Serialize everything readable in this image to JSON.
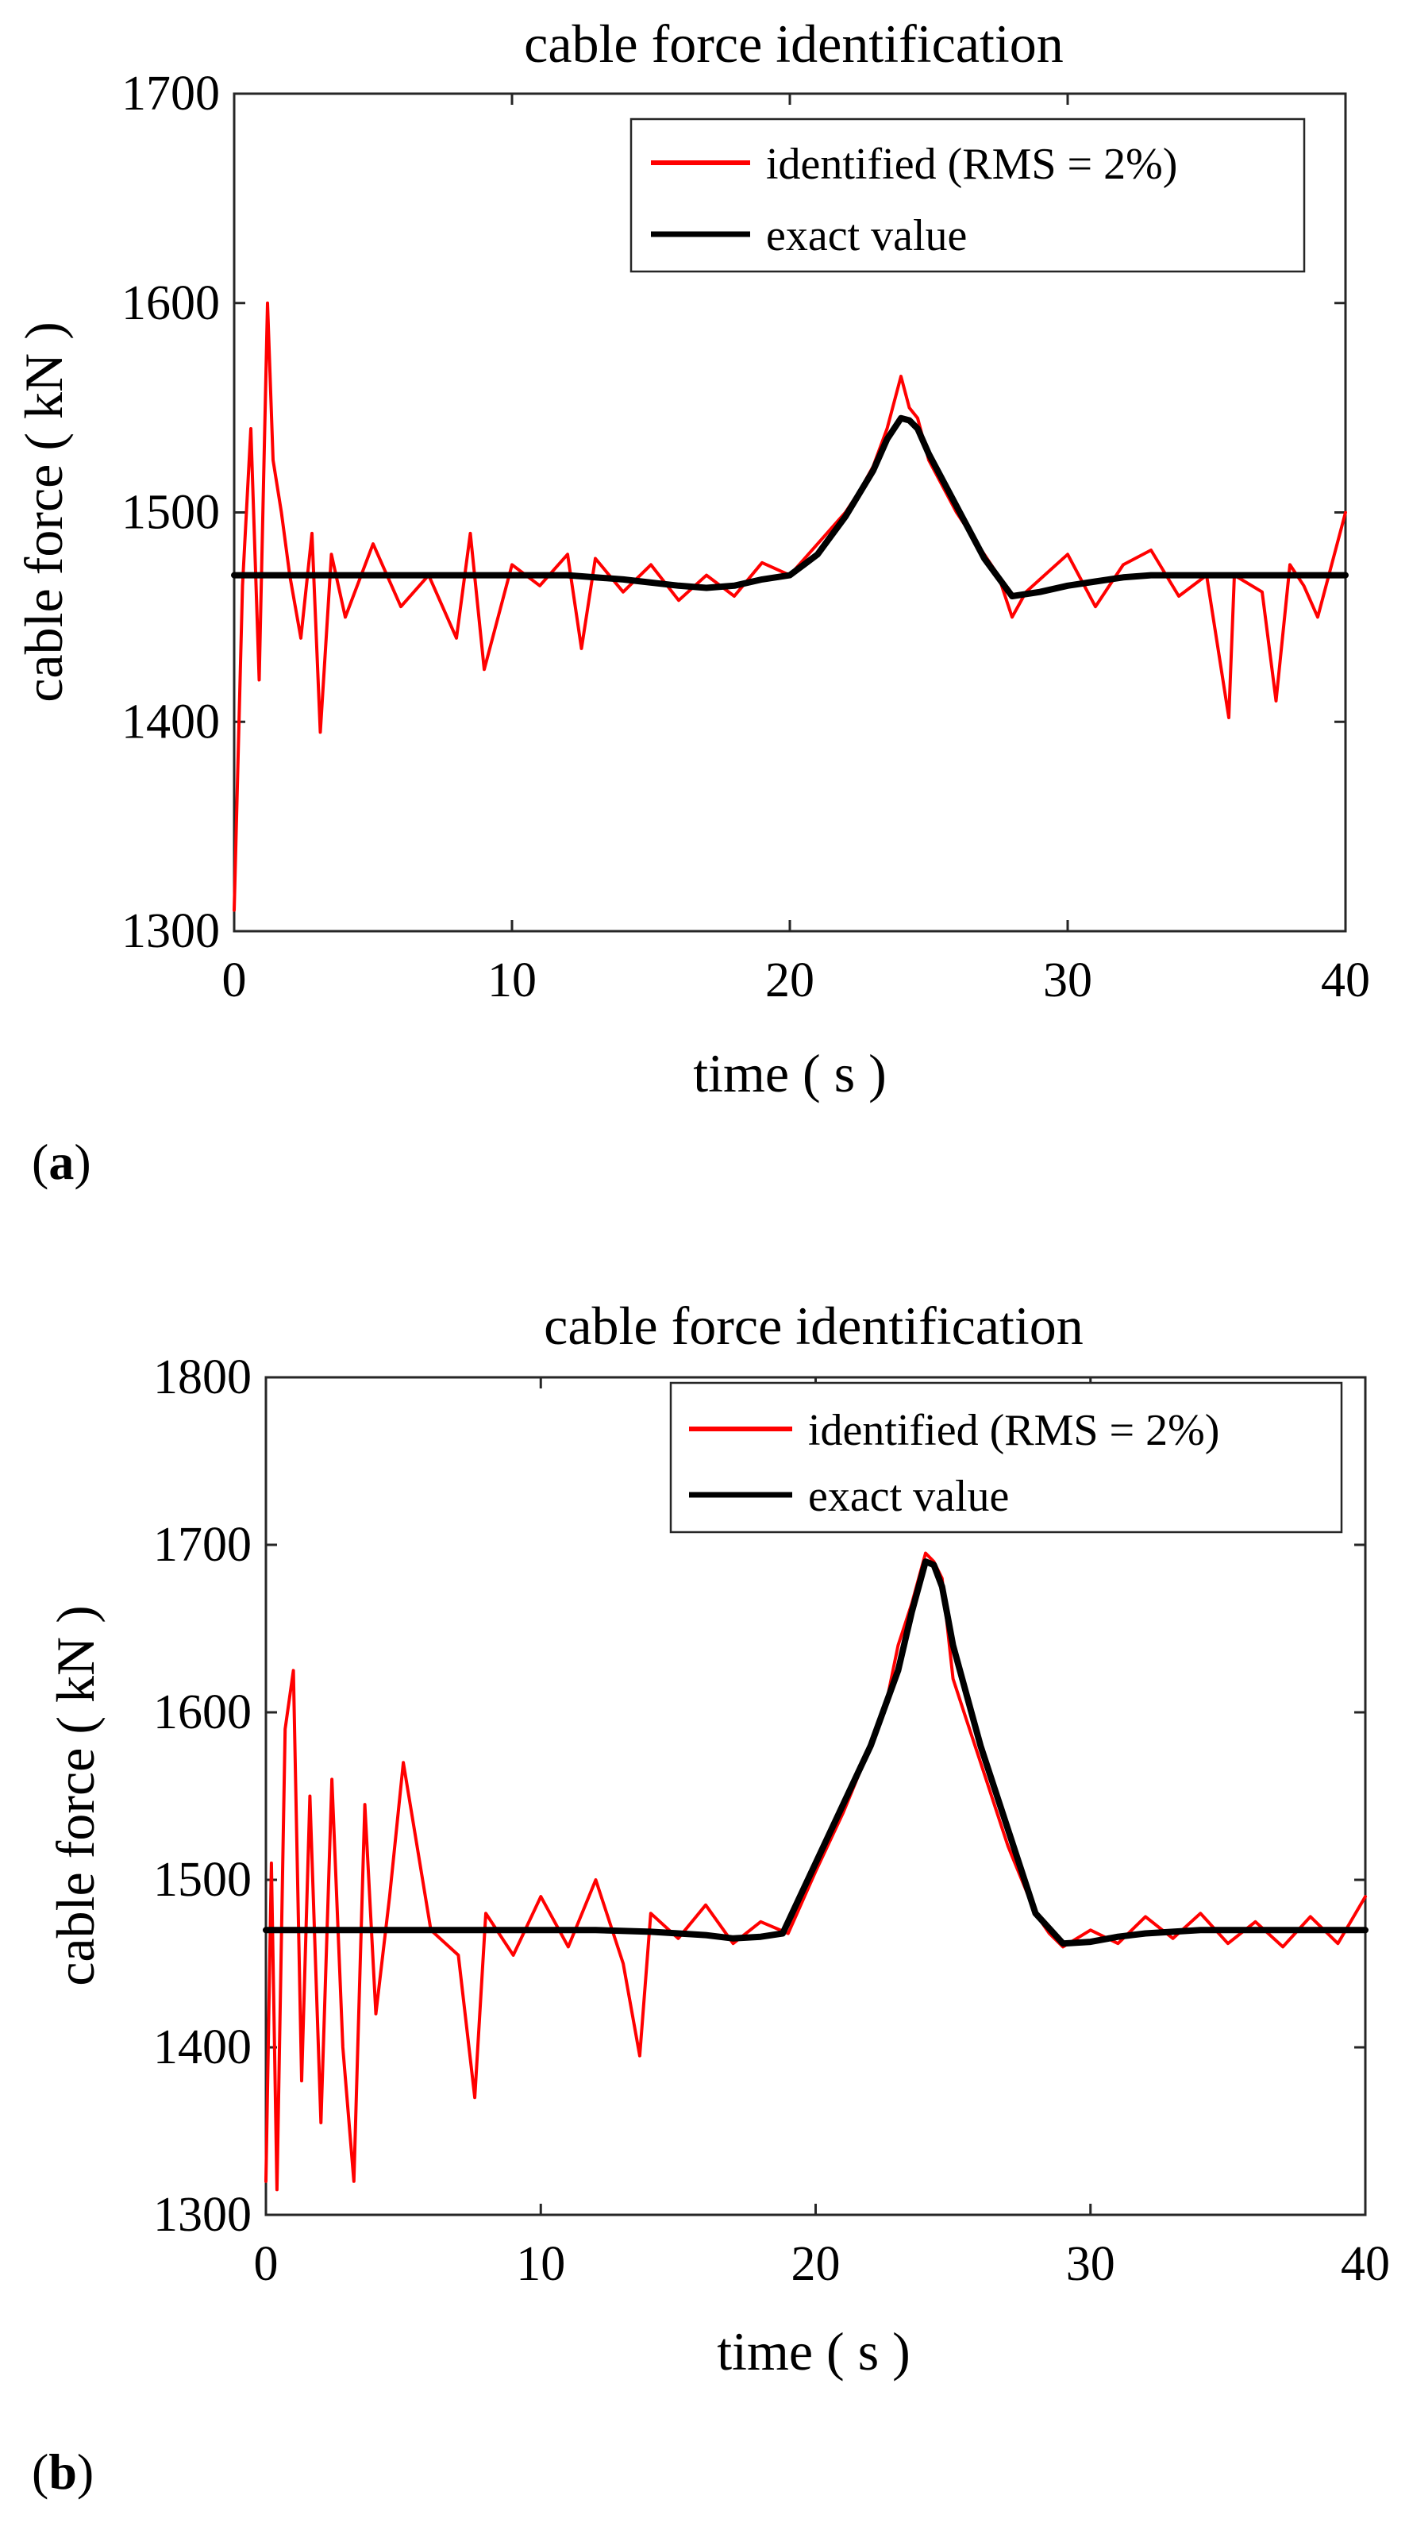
{
  "chart_data": [
    {
      "type": "line",
      "panel_label": "a",
      "title": "cable force identification",
      "xlabel": "time ( s )",
      "ylabel": "cable force ( kN )",
      "xlim": [
        0,
        40
      ],
      "ylim": [
        1300,
        1700
      ],
      "xticks": [
        "0",
        "10",
        "20",
        "30",
        "40"
      ],
      "yticks": [
        "1300",
        "1400",
        "1500",
        "1600",
        "1700"
      ],
      "grid": false,
      "legend_position": "top-right",
      "series": [
        {
          "name": "identified (RMS = 2%)",
          "color": "#ff0000",
          "x": [
            0,
            0.3,
            0.6,
            0.9,
            1.2,
            1.4,
            1.7,
            2.0,
            2.4,
            2.8,
            3.1,
            3.5,
            4.0,
            5.0,
            6.0,
            7.0,
            8.0,
            8.5,
            9.0,
            10.0,
            11.0,
            12.0,
            12.5,
            13.0,
            14.0,
            15.0,
            16.0,
            17.0,
            18.0,
            19.0,
            20.0,
            21.0,
            22.0,
            22.5,
            23.0,
            23.5,
            24.0,
            24.3,
            24.6,
            25.0,
            26.0,
            27.0,
            27.5,
            28.0,
            28.5,
            29.0,
            30.0,
            31.0,
            32.0,
            33.0,
            34.0,
            35.0,
            35.8,
            36.0,
            37.0,
            37.5,
            38.0,
            38.5,
            39.0,
            40.0
          ],
          "y": [
            1310,
            1465,
            1540,
            1420,
            1600,
            1525,
            1500,
            1470,
            1440,
            1490,
            1395,
            1480,
            1450,
            1485,
            1455,
            1470,
            1440,
            1490,
            1425,
            1475,
            1465,
            1480,
            1435,
            1478,
            1462,
            1475,
            1458,
            1470,
            1460,
            1476,
            1470,
            1485,
            1500,
            1510,
            1522,
            1540,
            1565,
            1550,
            1545,
            1525,
            1500,
            1480,
            1470,
            1450,
            1462,
            1468,
            1480,
            1455,
            1475,
            1482,
            1460,
            1470,
            1402,
            1470,
            1462,
            1410,
            1475,
            1465,
            1450,
            1500
          ]
        },
        {
          "name": "exact value",
          "color": "#000000",
          "x": [
            0,
            5,
            10,
            12,
            14,
            16,
            17,
            18,
            19,
            20,
            21,
            22,
            23,
            23.5,
            24,
            24.3,
            24.6,
            25,
            26,
            27,
            28,
            29,
            30,
            31,
            32,
            33,
            35,
            40
          ],
          "y": [
            1470,
            1470,
            1470,
            1470,
            1468,
            1465,
            1464,
            1465,
            1468,
            1470,
            1480,
            1498,
            1520,
            1535,
            1545,
            1544,
            1540,
            1528,
            1503,
            1478,
            1460,
            1462,
            1465,
            1467,
            1469,
            1470,
            1470,
            1470
          ]
        }
      ]
    },
    {
      "type": "line",
      "panel_label": "b",
      "title": "cable force identification",
      "xlabel": "time ( s )",
      "ylabel": "cable force ( kN )",
      "xlim": [
        0,
        40
      ],
      "ylim": [
        1300,
        1800
      ],
      "xticks": [
        "0",
        "10",
        "20",
        "30",
        "40"
      ],
      "yticks": [
        "1300",
        "1400",
        "1500",
        "1600",
        "1700",
        "1800"
      ],
      "grid": false,
      "legend_position": "top-right",
      "series": [
        {
          "name": "identified (RMS = 2%)",
          "color": "#ff0000",
          "x": [
            0,
            0.2,
            0.4,
            0.7,
            1.0,
            1.3,
            1.6,
            2.0,
            2.4,
            2.8,
            3.2,
            3.6,
            4.0,
            4.5,
            5.0,
            6.0,
            7.0,
            7.6,
            8.0,
            9.0,
            10.0,
            11.0,
            12.0,
            13.0,
            13.6,
            14.0,
            15.0,
            16.0,
            17.0,
            18.0,
            19.0,
            20.0,
            21.0,
            22.0,
            22.5,
            23.0,
            23.5,
            24.0,
            24.3,
            24.6,
            25.0,
            25.5,
            26.0,
            27.0,
            28.0,
            28.5,
            29.0,
            30.0,
            31.0,
            32.0,
            33.0,
            34.0,
            35.0,
            36.0,
            37.0,
            38.0,
            39.0,
            40.0
          ],
          "y": [
            1320,
            1510,
            1315,
            1590,
            1625,
            1380,
            1550,
            1355,
            1560,
            1400,
            1320,
            1545,
            1420,
            1490,
            1570,
            1470,
            1455,
            1370,
            1480,
            1455,
            1490,
            1460,
            1500,
            1450,
            1395,
            1480,
            1465,
            1485,
            1462,
            1475,
            1468,
            1505,
            1540,
            1580,
            1600,
            1640,
            1665,
            1695,
            1690,
            1680,
            1620,
            1595,
            1570,
            1520,
            1480,
            1468,
            1460,
            1470,
            1462,
            1478,
            1465,
            1480,
            1462,
            1475,
            1460,
            1478,
            1462,
            1490
          ]
        },
        {
          "name": "exact value",
          "color": "#000000",
          "x": [
            0,
            5,
            10,
            12,
            14,
            16,
            17,
            18,
            18.8,
            20,
            21,
            22,
            23,
            23.5,
            24,
            24.3,
            24.6,
            25,
            26,
            27,
            28,
            29,
            30,
            31,
            32,
            34,
            40
          ],
          "y": [
            1470,
            1470,
            1470,
            1470,
            1469,
            1467,
            1465,
            1466,
            1468,
            1510,
            1545,
            1580,
            1625,
            1660,
            1690,
            1688,
            1675,
            1640,
            1580,
            1530,
            1480,
            1462,
            1463,
            1466,
            1468,
            1470,
            1470
          ]
        }
      ]
    }
  ]
}
